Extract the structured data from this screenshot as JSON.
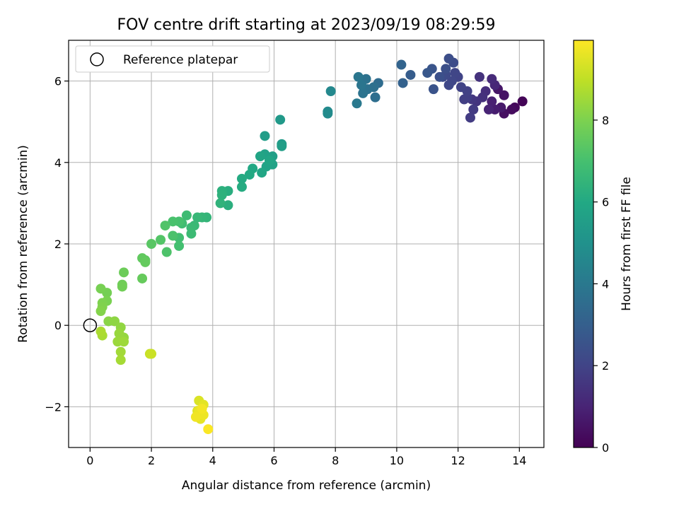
{
  "chart_data": {
    "type": "scatter",
    "title": "FOV centre drift starting at 2023/09/19 08:29:59",
    "xlabel": "Angular distance from reference (arcmin)",
    "ylabel": "Rotation from reference (arcmin)",
    "xlim": [
      -0.7,
      14.8
    ],
    "ylim": [
      -3.0,
      7.0
    ],
    "xticks": [
      "0",
      "2",
      "4",
      "6",
      "8",
      "10",
      "12",
      "14"
    ],
    "yticks": [
      "−2",
      "0",
      "2",
      "4",
      "6"
    ],
    "grid": true,
    "legend": {
      "placement": "upper-left",
      "label": "Reference platepar"
    },
    "reference_point": {
      "x": 0,
      "y": 0
    },
    "colorbar": {
      "label": "Hours from first FF file",
      "range": [
        0,
        9.95
      ],
      "ticks": [
        "0",
        "2",
        "4",
        "6",
        "8"
      ],
      "colormap": "viridis"
    },
    "points": [
      [
        14.1,
        5.5,
        0.1
      ],
      [
        13.85,
        5.35,
        0.2
      ],
      [
        13.75,
        5.3,
        0.3
      ],
      [
        13.5,
        5.2,
        0.4
      ],
      [
        13.5,
        5.65,
        0.5
      ],
      [
        13.3,
        5.8,
        0.6
      ],
      [
        13.4,
        5.35,
        0.7
      ],
      [
        13.2,
        5.3,
        0.8
      ],
      [
        13.1,
        5.5,
        0.9
      ],
      [
        13.0,
        5.3,
        1.0
      ],
      [
        13.2,
        5.9,
        1.1
      ],
      [
        13.1,
        6.05,
        1.2
      ],
      [
        12.9,
        5.75,
        1.3
      ],
      [
        12.8,
        5.6,
        1.4
      ],
      [
        12.7,
        6.1,
        1.45
      ],
      [
        12.6,
        5.5,
        1.5
      ],
      [
        12.45,
        5.55,
        1.6
      ],
      [
        12.5,
        5.3,
        1.7
      ],
      [
        12.4,
        5.1,
        1.75
      ],
      [
        12.3,
        5.6,
        1.8
      ],
      [
        12.2,
        5.55,
        1.85
      ],
      [
        12.3,
        5.75,
        1.9
      ],
      [
        12.1,
        5.85,
        1.95
      ],
      [
        12.0,
        6.1,
        2.0
      ],
      [
        11.9,
        6.2,
        2.05
      ],
      [
        11.8,
        6.0,
        2.1
      ],
      [
        11.7,
        5.9,
        2.15
      ],
      [
        11.6,
        6.15,
        2.2
      ],
      [
        11.5,
        6.1,
        2.25
      ],
      [
        11.85,
        6.45,
        2.3
      ],
      [
        11.7,
        6.55,
        2.35
      ],
      [
        11.6,
        6.3,
        2.4
      ],
      [
        11.4,
        6.1,
        2.45
      ],
      [
        11.2,
        5.8,
        2.55
      ],
      [
        11.15,
        6.3,
        2.6
      ],
      [
        11.0,
        6.2,
        2.7
      ],
      [
        10.45,
        6.15,
        2.9
      ],
      [
        10.2,
        5.95,
        3.1
      ],
      [
        10.15,
        6.4,
        3.2
      ],
      [
        9.4,
        5.95,
        3.5
      ],
      [
        9.3,
        5.6,
        3.6
      ],
      [
        9.25,
        5.85,
        3.65
      ],
      [
        9.05,
        5.8,
        3.7
      ],
      [
        9.0,
        6.05,
        3.75
      ],
      [
        8.9,
        5.7,
        3.8
      ],
      [
        8.85,
        5.9,
        3.85
      ],
      [
        8.75,
        6.1,
        3.9
      ],
      [
        8.7,
        5.45,
        4.0
      ],
      [
        7.85,
        5.75,
        4.6
      ],
      [
        7.75,
        5.25,
        4.7
      ],
      [
        7.75,
        5.2,
        4.75
      ],
      [
        6.2,
        5.05,
        5.3
      ],
      [
        6.25,
        4.45,
        5.4
      ],
      [
        5.7,
        4.65,
        5.5
      ],
      [
        6.25,
        4.4,
        5.55
      ],
      [
        5.95,
        4.15,
        5.6
      ],
      [
        5.7,
        4.2,
        5.65
      ],
      [
        5.95,
        3.95,
        5.7
      ],
      [
        5.75,
        3.9,
        5.75
      ],
      [
        5.55,
        4.15,
        5.8
      ],
      [
        5.85,
        4.05,
        5.85
      ],
      [
        5.6,
        3.75,
        5.9
      ],
      [
        5.3,
        3.85,
        5.95
      ],
      [
        5.2,
        3.7,
        6.0
      ],
      [
        4.95,
        3.6,
        6.05
      ],
      [
        4.95,
        3.4,
        6.1
      ],
      [
        4.5,
        3.3,
        6.2
      ],
      [
        4.5,
        2.95,
        6.25
      ],
      [
        4.3,
        3.3,
        6.3
      ],
      [
        4.3,
        3.2,
        6.35
      ],
      [
        4.25,
        3.0,
        6.4
      ],
      [
        3.8,
        2.65,
        6.5
      ],
      [
        3.65,
        2.65,
        6.55
      ],
      [
        3.5,
        2.65,
        6.6
      ],
      [
        3.4,
        2.45,
        6.65
      ],
      [
        3.3,
        2.4,
        6.7
      ],
      [
        3.3,
        2.25,
        6.75
      ],
      [
        3.15,
        2.7,
        6.8
      ],
      [
        3.0,
        2.5,
        6.85
      ],
      [
        2.9,
        2.15,
        6.9
      ],
      [
        2.9,
        1.95,
        6.95
      ],
      [
        2.9,
        2.55,
        7.0
      ],
      [
        2.7,
        2.55,
        7.05
      ],
      [
        2.7,
        2.2,
        7.1
      ],
      [
        2.5,
        1.8,
        7.15
      ],
      [
        2.45,
        2.45,
        7.2
      ],
      [
        2.3,
        2.1,
        7.25
      ],
      [
        2.0,
        2.0,
        7.35
      ],
      [
        1.8,
        1.6,
        7.45
      ],
      [
        1.7,
        1.65,
        7.5
      ],
      [
        1.8,
        1.55,
        7.55
      ],
      [
        1.7,
        1.15,
        7.6
      ],
      [
        1.1,
        1.3,
        7.7
      ],
      [
        1.05,
        1.0,
        7.75
      ],
      [
        1.05,
        0.95,
        7.8
      ],
      [
        0.55,
        0.8,
        7.85
      ],
      [
        0.35,
        0.9,
        7.9
      ],
      [
        0.55,
        0.6,
        7.95
      ],
      [
        0.4,
        0.55,
        8.0
      ],
      [
        0.4,
        0.45,
        8.05
      ],
      [
        0.35,
        0.35,
        8.1
      ],
      [
        0.6,
        0.1,
        8.2
      ],
      [
        0.8,
        0.1,
        8.25
      ],
      [
        1.0,
        -0.05,
        8.3
      ],
      [
        1.1,
        -0.3,
        8.35
      ],
      [
        0.95,
        -0.2,
        8.4
      ],
      [
        0.9,
        -0.4,
        8.45
      ],
      [
        1.1,
        -0.4,
        8.5
      ],
      [
        1.0,
        -0.65,
        8.55
      ],
      [
        1.0,
        -0.85,
        8.6
      ],
      [
        0.4,
        -0.25,
        8.65
      ],
      [
        0.35,
        -0.15,
        8.7
      ],
      [
        1.95,
        -0.7,
        9.1
      ],
      [
        2.0,
        -0.7,
        9.15
      ],
      [
        3.55,
        -1.85,
        9.4
      ],
      [
        3.5,
        -2.1,
        9.45
      ],
      [
        3.5,
        -2.2,
        9.5
      ],
      [
        3.7,
        -1.95,
        9.55
      ],
      [
        3.6,
        -2.3,
        9.6
      ],
      [
        3.55,
        -2.1,
        9.65
      ],
      [
        3.7,
        -2.2,
        9.7
      ],
      [
        3.45,
        -2.25,
        9.75
      ],
      [
        3.65,
        -2.05,
        9.8
      ],
      [
        3.85,
        -2.55,
        9.9
      ]
    ]
  }
}
